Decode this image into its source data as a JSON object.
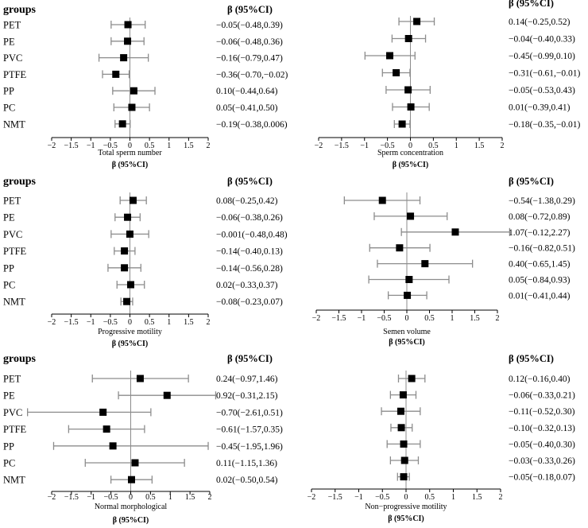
{
  "chart_data": [
    {
      "type": "forest",
      "groups_label": "groups",
      "header": "β (95%CI)",
      "xlabel": "Total sperm number",
      "beta_label": "β (95%CI)",
      "xlim": [
        -2,
        2
      ],
      "ticks": [
        -2,
        -1.5,
        -1,
        -0.5,
        0,
        0.5,
        1,
        1.5,
        2
      ],
      "tick_labels": [
        "−2",
        "−1.5",
        "−1",
        "−0.5",
        "0",
        "0.5",
        "1",
        "1.5",
        "2"
      ],
      "rows": [
        {
          "label": "PET",
          "beta": -0.05,
          "lower": -0.48,
          "upper": 0.39,
          "ci_text": "−0.05(−0.48,0.39)"
        },
        {
          "label": "PE",
          "beta": -0.06,
          "lower": -0.48,
          "upper": 0.36,
          "ci_text": "−0.06(−0.48,0.36)"
        },
        {
          "label": "PVC",
          "beta": -0.16,
          "lower": -0.79,
          "upper": 0.47,
          "ci_text": "−0.16(−0.79,0.47)"
        },
        {
          "label": "PTFE",
          "beta": -0.36,
          "lower": -0.7,
          "upper": -0.02,
          "ci_text": "−0.36(−0.70,−0.02)"
        },
        {
          "label": "PP",
          "beta": 0.1,
          "lower": -0.44,
          "upper": 0.64,
          "ci_text": "0.10(−0.44,0.64)"
        },
        {
          "label": "PC",
          "beta": 0.05,
          "lower": -0.41,
          "upper": 0.5,
          "ci_text": "0.05(−0.41,0.50)"
        },
        {
          "label": "NMT",
          "beta": -0.19,
          "lower": -0.38,
          "upper": 0.006,
          "ci_text": "−0.19(−0.38,0.006)"
        }
      ]
    },
    {
      "type": "forest",
      "groups_label": "",
      "header": "β (95%CI)",
      "xlabel": "Sperm concentration",
      "beta_label": "β (95%CI)",
      "xlim": [
        -2,
        2
      ],
      "ticks": [
        -2,
        -1.5,
        -1,
        -0.5,
        0,
        0.5,
        1,
        1.5,
        2
      ],
      "tick_labels": [
        "−2",
        "−1.5",
        "−1",
        "−0.5",
        "0",
        "0.5",
        "1",
        "1.5",
        "2"
      ],
      "rows": [
        {
          "label": "PET",
          "beta": 0.14,
          "lower": -0.25,
          "upper": 0.52,
          "ci_text": "0.14(−0.25,0.52)"
        },
        {
          "label": "PE",
          "beta": -0.04,
          "lower": -0.4,
          "upper": 0.33,
          "ci_text": "−0.04(−0.40,0.33)"
        },
        {
          "label": "PVC",
          "beta": -0.45,
          "lower": -0.99,
          "upper": 0.1,
          "ci_text": "−0.45(−0.99,0.10)"
        },
        {
          "label": "PTFE",
          "beta": -0.31,
          "lower": -0.61,
          "upper": -0.01,
          "ci_text": "−0.31(−0.61,−0.01)"
        },
        {
          "label": "PP",
          "beta": -0.05,
          "lower": -0.53,
          "upper": 0.43,
          "ci_text": "−0.05(−0.53,0.43)"
        },
        {
          "label": "PC",
          "beta": 0.01,
          "lower": -0.39,
          "upper": 0.41,
          "ci_text": "0.01(−0.39,0.41)"
        },
        {
          "label": "NMT",
          "beta": -0.18,
          "lower": -0.35,
          "upper": -0.01,
          "ci_text": "−0.18(−0.35,−0.01)"
        }
      ]
    },
    {
      "type": "forest",
      "groups_label": "groups",
      "header": "β (95%CI)",
      "xlabel": "Progressive motility",
      "beta_label": "β (95%CI)",
      "xlim": [
        -2,
        2
      ],
      "ticks": [
        -2,
        -1.5,
        -1,
        -0.5,
        0,
        0.5,
        1,
        1.5,
        2
      ],
      "tick_labels": [
        "−2",
        "−1.5",
        "−1",
        "−0.5",
        "0",
        "0.5",
        "1",
        "1.5",
        "2"
      ],
      "rows": [
        {
          "label": "PET",
          "beta": 0.08,
          "lower": -0.25,
          "upper": 0.42,
          "ci_text": "0.08(−0.25,0.42)"
        },
        {
          "label": "PE",
          "beta": -0.06,
          "lower": -0.38,
          "upper": 0.26,
          "ci_text": "−0.06(−0.38,0.26)"
        },
        {
          "label": "PVC",
          "beta": -0.001,
          "lower": -0.48,
          "upper": 0.48,
          "ci_text": "−0.001(−0.48,0.48)"
        },
        {
          "label": "PTFE",
          "beta": -0.14,
          "lower": -0.4,
          "upper": 0.13,
          "ci_text": "−0.14(−0.40,0.13)"
        },
        {
          "label": "PP",
          "beta": -0.14,
          "lower": -0.56,
          "upper": 0.28,
          "ci_text": "−0.14(−0.56,0.28)"
        },
        {
          "label": "PC",
          "beta": 0.02,
          "lower": -0.33,
          "upper": 0.37,
          "ci_text": "0.02(−0.33,0.37)"
        },
        {
          "label": "NMT",
          "beta": -0.08,
          "lower": -0.23,
          "upper": 0.07,
          "ci_text": "−0.08(−0.23,0.07)"
        }
      ]
    },
    {
      "type": "forest",
      "groups_label": "",
      "header": "β (95%CI)",
      "xlabel": "Semen volume",
      "beta_label": "β (95%CI)",
      "xlim": [
        -2,
        2
      ],
      "ticks": [
        -2,
        -1.5,
        -1,
        -0.5,
        0,
        0.5,
        1,
        1.5,
        2
      ],
      "tick_labels": [
        "−2",
        "−1.5",
        "−1",
        "−0.5",
        "0",
        "0.5",
        "1",
        "1.5",
        "2"
      ],
      "rows": [
        {
          "label": "PET",
          "beta": -0.54,
          "lower": -1.38,
          "upper": 0.29,
          "ci_text": "−0.54(−1.38,0.29)"
        },
        {
          "label": "PE",
          "beta": 0.08,
          "lower": -0.72,
          "upper": 0.89,
          "ci_text": "0.08(−0.72,0.89)"
        },
        {
          "label": "PVC",
          "beta": 1.07,
          "lower": -0.12,
          "upper": 2.27,
          "ci_text": "1.07(−0.12,2.27)"
        },
        {
          "label": "PTFE",
          "beta": -0.16,
          "lower": -0.82,
          "upper": 0.51,
          "ci_text": "−0.16(−0.82,0.51)"
        },
        {
          "label": "PP",
          "beta": 0.4,
          "lower": -0.65,
          "upper": 1.45,
          "ci_text": "0.40(−0.65,1.45)"
        },
        {
          "label": "PC",
          "beta": 0.05,
          "lower": -0.84,
          "upper": 0.93,
          "ci_text": "0.05(−0.84,0.93)"
        },
        {
          "label": "NMT",
          "beta": 0.01,
          "lower": -0.41,
          "upper": 0.44,
          "ci_text": "0.01(−0.41,0.44)"
        }
      ]
    },
    {
      "type": "forest",
      "groups_label": "groups",
      "header": "β (95%CI)",
      "xlabel": "Normal morphological",
      "beta_label": "β (95%CI)",
      "xlim": [
        -2,
        2
      ],
      "ticks": [
        -2,
        -1.5,
        -1,
        -0.5,
        0,
        0.5,
        1,
        1.5,
        2
      ],
      "tick_labels": [
        "−2",
        "−1.5",
        "−1",
        "−0.5",
        "0",
        "0.5",
        "1",
        "1.5",
        "2"
      ],
      "rows": [
        {
          "label": "PET",
          "beta": 0.24,
          "lower": -0.97,
          "upper": 1.46,
          "ci_text": "0.24(−0.97,1.46)"
        },
        {
          "label": "PE",
          "beta": 0.92,
          "lower": -0.31,
          "upper": 2.15,
          "ci_text": "0.92(−0.31,2.15)"
        },
        {
          "label": "PVC",
          "beta": -0.7,
          "lower": -2.61,
          "upper": 0.51,
          "ci_text": "−0.70(−2.61,0.51)"
        },
        {
          "label": "PTFE",
          "beta": -0.61,
          "lower": -1.57,
          "upper": 0.35,
          "ci_text": "−0.61(−1.57,0.35)"
        },
        {
          "label": "PP",
          "beta": -0.45,
          "lower": -1.95,
          "upper": 1.96,
          "ci_text": "−0.45(−1.95,1.96)"
        },
        {
          "label": "PC",
          "beta": 0.11,
          "lower": -1.15,
          "upper": 1.36,
          "ci_text": "0.11(−1.15,1.36)"
        },
        {
          "label": "NMT",
          "beta": 0.02,
          "lower": -0.5,
          "upper": 0.54,
          "ci_text": "0.02(−0.50,0.54)"
        }
      ]
    },
    {
      "type": "forest",
      "groups_label": "",
      "header": "β (95%CI)",
      "xlabel": "Non−progressive motility",
      "beta_label": "β (95%CI)",
      "xlim": [
        -2,
        2
      ],
      "ticks": [
        -2,
        -1.5,
        -1,
        -0.5,
        0,
        0.5,
        1,
        1.5,
        2
      ],
      "tick_labels": [
        "−2",
        "−1.5",
        "−1",
        "−0.5",
        "0",
        "0.5",
        "1",
        "1.5",
        "2"
      ],
      "rows": [
        {
          "label": "PET",
          "beta": 0.12,
          "lower": -0.16,
          "upper": 0.4,
          "ci_text": "0.12(−0.16,0.40)"
        },
        {
          "label": "PE",
          "beta": -0.06,
          "lower": -0.33,
          "upper": 0.21,
          "ci_text": "−0.06(−0.33,0.21)"
        },
        {
          "label": "PVC",
          "beta": -0.11,
          "lower": -0.52,
          "upper": 0.3,
          "ci_text": "−0.11(−0.52,0.30)"
        },
        {
          "label": "PTFE",
          "beta": -0.1,
          "lower": -0.32,
          "upper": 0.13,
          "ci_text": "−0.10(−0.32,0.13)"
        },
        {
          "label": "PP",
          "beta": -0.05,
          "lower": -0.4,
          "upper": 0.3,
          "ci_text": "−0.05(−0.40,0.30)"
        },
        {
          "label": "PC",
          "beta": -0.03,
          "lower": -0.33,
          "upper": 0.26,
          "ci_text": "−0.03(−0.33,0.26)"
        },
        {
          "label": "NMT",
          "beta": -0.05,
          "lower": -0.18,
          "upper": 0.07,
          "ci_text": "−0.05(−0.18,0.07)"
        }
      ]
    }
  ]
}
